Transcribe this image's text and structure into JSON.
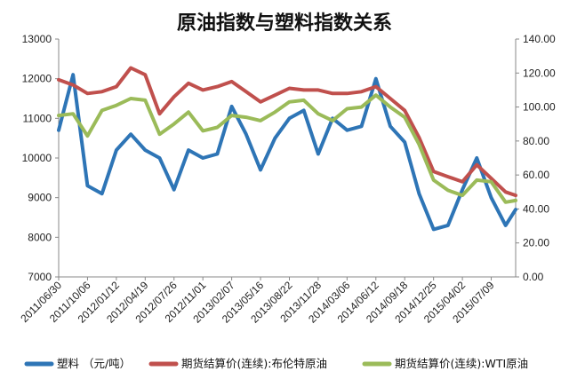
{
  "chart_data": {
    "type": "line",
    "title": "原油指数与塑料指数关系",
    "x": [
      "2011/06/30",
      "2011/08/18",
      "2011/10/06",
      "2011/11/24",
      "2012/01/12",
      "2012/03/01",
      "2012/04/19",
      "2012/06/07",
      "2012/07/26",
      "2012/09/13",
      "2012/11/01",
      "2012/12/20",
      "2013/02/07",
      "2013/03/28",
      "2013/05/16",
      "2013/07/04",
      "2013/08/22",
      "2013/10/10",
      "2013/11/28",
      "2014/01/16",
      "2014/03/06",
      "2014/04/24",
      "2014/06/12",
      "2014/07/31",
      "2014/09/18",
      "2014/11/06",
      "2014/12/25",
      "2015/02/12",
      "2015/04/02",
      "2015/05/21",
      "2015/07/09",
      "2015/08/27",
      "2015/09/30"
    ],
    "x_tick_labels": [
      "2011/06/30",
      "2011/10/06",
      "2012/01/12",
      "2012/04/19",
      "2012/07/26",
      "2012/11/01",
      "2013/02/07",
      "2013/05/16",
      "2013/08/22",
      "2013/11/28",
      "2014/03/06",
      "2014/06/12",
      "2014/09/18",
      "2014/12/25",
      "2015/04/02",
      "2015/07/09"
    ],
    "y_left": {
      "ticks": [
        "13000",
        "12000",
        "11000",
        "10000",
        "9000",
        "8000",
        "7000"
      ],
      "lim": [
        7000,
        13000
      ]
    },
    "y_right": {
      "ticks": [
        "140.00",
        "120.00",
        "100.00",
        "80.00",
        "60.00",
        "40.00",
        "20.00",
        "0.00"
      ],
      "lim": [
        0,
        140
      ]
    },
    "series": [
      {
        "name": "塑料 （元/吨）",
        "axis": "left",
        "color": "#2e75b6",
        "values": [
          10700,
          12100,
          9300,
          9100,
          10200,
          10600,
          10200,
          10000,
          9200,
          10200,
          10000,
          10100,
          11300,
          10600,
          9700,
          10500,
          11000,
          11200,
          10100,
          11000,
          10700,
          10800,
          12000,
          10800,
          10400,
          9100,
          8200,
          8300,
          9200,
          10000,
          9000,
          8300,
          8700
        ]
      },
      {
        "name": "期货结算价(连续):布伦特原油",
        "axis": "right",
        "color": "#c0504d",
        "values": [
          116,
          113,
          108,
          109,
          112,
          123,
          119,
          96,
          106,
          114,
          110,
          112,
          115,
          109,
          103,
          107,
          111,
          110,
          110,
          108,
          108,
          109,
          112,
          105,
          98,
          82,
          62,
          59,
          56,
          66,
          58,
          50,
          48
        ]
      },
      {
        "name": "期货结算价(连续):WTI原油",
        "axis": "right",
        "color": "#9bbb59",
        "values": [
          95,
          96,
          83,
          98,
          101,
          105,
          104,
          84,
          90,
          97,
          86,
          88,
          95,
          94,
          92,
          97,
          103,
          104,
          96,
          92,
          99,
          100,
          107,
          100,
          94,
          78,
          57,
          51,
          48,
          57,
          56,
          44,
          45
        ]
      }
    ],
    "legend_position": "bottom",
    "grid": false
  }
}
